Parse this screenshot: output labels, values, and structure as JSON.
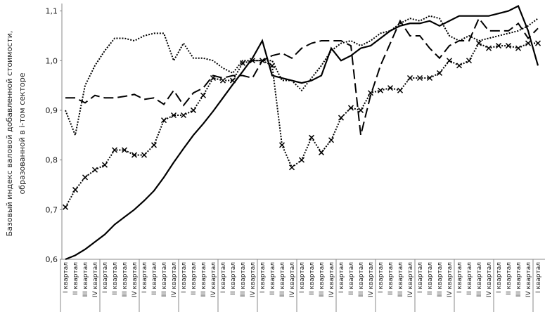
{
  "chart_data": {
    "type": "line",
    "ylabel": [
      "Базовый индекс валовой добавленной стоимости,",
      "образованной в i-том секторе"
    ],
    "categories": [
      "I квартал",
      "II квартал",
      "III квартал",
      "IV квартал",
      "I квартал",
      "II квартал",
      "III квартал",
      "IV квартал",
      "I квартал",
      "II квартал",
      "III квартал",
      "IV квартал",
      "I квартал",
      "II квартал",
      "III квартал",
      "IV квартал",
      "I квартал",
      "II квартал",
      "III квартал",
      "IV квартал",
      "I квартал",
      "II квартал",
      "III квартал",
      "IV квартал",
      "I квартал",
      "II квартал",
      "III квартал",
      "IV квартал",
      "I квартал",
      "II квартал",
      "III квартал",
      "IV квартал",
      "I квартал",
      "II квартал",
      "III квартал",
      "IV квартал",
      "I квартал",
      "II квартал",
      "III квартал",
      "IV квартал",
      "I квартал",
      "II квартал",
      "III квартал",
      "IV квартал",
      "I квартал",
      "II квартал",
      "III квартал",
      "IV квартал",
      "I квартал"
    ],
    "ylim": [
      0.6,
      1.115
    ],
    "yticks": [
      {
        "value": 0.6,
        "label": "0,6"
      },
      {
        "value": 0.7,
        "label": "0,7"
      },
      {
        "value": 0.8,
        "label": "0,8"
      },
      {
        "value": 0.9,
        "label": "0,9"
      },
      {
        "value": 1.0,
        "label": "1,0"
      },
      {
        "value": 1.1,
        "label": "1,1"
      }
    ],
    "grid": false,
    "series": [
      {
        "color": "#000000",
        "style": "solid",
        "values": [
          0.6,
          0.608,
          0.62,
          0.635,
          0.65,
          0.67,
          0.685,
          0.7,
          0.718,
          0.738,
          0.765,
          0.795,
          0.823,
          0.85,
          0.873,
          0.898,
          0.925,
          0.952,
          0.978,
          1.005,
          1.04,
          0.97,
          0.965,
          0.96,
          0.955,
          0.96,
          0.97,
          1.025,
          1.0,
          1.01,
          1.025,
          1.03,
          1.045,
          1.06,
          1.07,
          1.075,
          1.075,
          1.08,
          1.07,
          1.08,
          1.09,
          1.09,
          1.09,
          1.09,
          1.095,
          1.1,
          1.11,
          1.06,
          0.99
        ]
      },
      {
        "color": "#000000",
        "style": "dashed",
        "values": [
          0.925,
          0.925,
          0.915,
          0.93,
          0.925,
          0.925,
          0.928,
          0.932,
          0.922,
          0.925,
          0.912,
          0.94,
          0.91,
          0.935,
          0.945,
          0.97,
          0.965,
          0.97,
          0.97,
          0.965,
          1.0,
          1.01,
          1.015,
          1.005,
          1.025,
          1.035,
          1.04,
          1.04,
          1.04,
          1.03,
          0.85,
          0.93,
          0.99,
          1.035,
          1.08,
          1.05,
          1.05,
          1.025,
          1.005,
          1.03,
          1.04,
          1.04,
          1.085,
          1.06,
          1.06,
          1.06,
          1.075,
          1.045,
          1.065
        ]
      },
      {
        "color": "#000000",
        "style": "dotted",
        "values": [
          0.9,
          0.85,
          0.95,
          0.99,
          1.02,
          1.045,
          1.045,
          1.04,
          1.05,
          1.055,
          1.055,
          1.0,
          1.035,
          1.005,
          1.005,
          1.0,
          0.985,
          0.975,
          1.0,
          1.0,
          1.0,
          1.0,
          0.96,
          0.96,
          0.94,
          0.965,
          0.99,
          1.02,
          1.035,
          1.04,
          1.03,
          1.04,
          1.055,
          1.06,
          1.075,
          1.085,
          1.08,
          1.09,
          1.085,
          1.05,
          1.04,
          1.05,
          1.04,
          1.045,
          1.05,
          1.055,
          1.06,
          1.07,
          1.085
        ]
      },
      {
        "color": "#000000",
        "style": "dotted-x",
        "values": [
          0.705,
          0.74,
          0.765,
          0.78,
          0.79,
          0.82,
          0.82,
          0.81,
          0.81,
          0.83,
          0.88,
          0.89,
          0.89,
          0.9,
          0.93,
          0.965,
          0.96,
          0.96,
          0.995,
          1.0,
          1.0,
          0.99,
          0.83,
          0.785,
          0.8,
          0.845,
          0.815,
          0.84,
          0.885,
          0.905,
          0.9,
          0.935,
          0.94,
          0.945,
          0.94,
          0.965,
          0.965,
          0.965,
          0.975,
          1.0,
          0.99,
          1.0,
          1.035,
          1.025,
          1.03,
          1.03,
          1.025,
          1.035,
          1.035
        ]
      }
    ]
  }
}
